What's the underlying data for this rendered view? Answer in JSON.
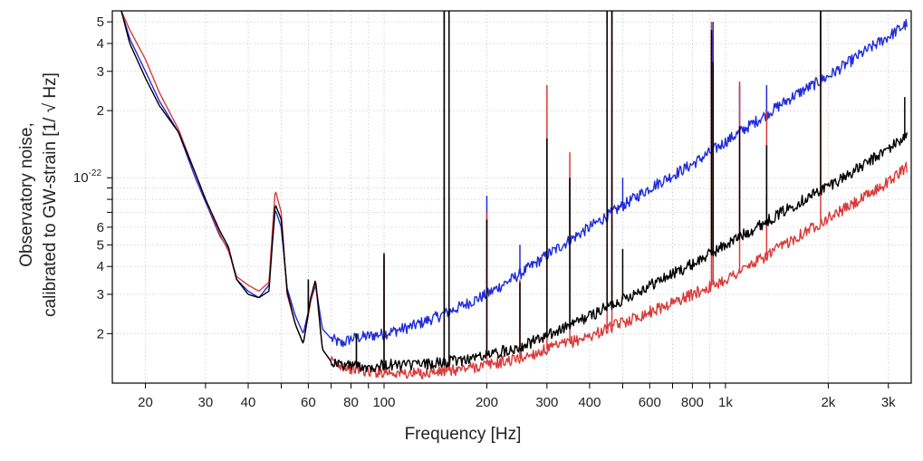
{
  "chart_data": {
    "type": "line",
    "title": "",
    "xlabel": "Frequency [Hz]",
    "ylabel_line1": "Observatory noise,",
    "ylabel_line2": "calibrated to GW-strain  [1/ √ Hz]",
    "xscale": "log",
    "yscale": "log",
    "xlim": [
      16,
      3500
    ],
    "ylim": [
      1.2e-23,
      5.6e-22
    ],
    "grid": true,
    "legend": "none",
    "x_tick_labels": [
      {
        "v": 20,
        "t": "20"
      },
      {
        "v": 30,
        "t": "30"
      },
      {
        "v": 40,
        "t": "40"
      },
      {
        "v": 60,
        "t": "60"
      },
      {
        "v": 80,
        "t": "80"
      },
      {
        "v": 100,
        "t": "100"
      },
      {
        "v": 200,
        "t": "200"
      },
      {
        "v": 300,
        "t": "300"
      },
      {
        "v": 400,
        "t": "400"
      },
      {
        "v": 600,
        "t": "600"
      },
      {
        "v": 800,
        "t": "800"
      },
      {
        "v": 1000,
        "t": "1k"
      },
      {
        "v": 2000,
        "t": "2k"
      },
      {
        "v": 3000,
        "t": "3k"
      }
    ],
    "y_tick_labels": [
      {
        "v": 2e-23,
        "t": "2"
      },
      {
        "v": 3e-23,
        "t": "3"
      },
      {
        "v": 4e-23,
        "t": "4"
      },
      {
        "v": 5e-23,
        "t": "5"
      },
      {
        "v": 6e-23,
        "t": "6"
      },
      {
        "v": 2e-22,
        "t": "2"
      },
      {
        "v": 3e-22,
        "t": "3"
      },
      {
        "v": 4e-22,
        "t": "4"
      },
      {
        "v": 5e-22,
        "t": "5"
      }
    ],
    "y_decade_label": {
      "v": 1e-22,
      "base": "10",
      "exp": "-22"
    },
    "series": [
      {
        "color": "#1f2bdc",
        "points": [
          [
            17,
            5.6e-22
          ],
          [
            18,
            4.2e-22
          ],
          [
            20,
            3e-22
          ],
          [
            22,
            2.2e-22
          ],
          [
            25,
            1.6e-22
          ],
          [
            28,
            1e-22
          ],
          [
            30,
            7.8e-23
          ],
          [
            33,
            5.5e-23
          ],
          [
            35,
            4.8e-23
          ],
          [
            37,
            3.5e-23
          ],
          [
            40,
            3.1e-23
          ],
          [
            43,
            2.9e-23
          ],
          [
            46,
            3.3e-23
          ],
          [
            48,
            7.2e-23
          ],
          [
            50,
            6e-23
          ],
          [
            52,
            3.2e-23
          ],
          [
            55,
            2.4e-23
          ],
          [
            58,
            2e-23
          ],
          [
            61,
            2.8e-23
          ],
          [
            63,
            3.3e-23
          ],
          [
            66,
            2.1e-23
          ],
          [
            70,
            1.9e-23
          ],
          [
            75,
            1.8e-23
          ],
          [
            80,
            1.9e-23
          ],
          [
            90,
            1.95e-23
          ],
          [
            100,
            2e-23
          ],
          [
            120,
            2.15e-23
          ],
          [
            150,
            2.45e-23
          ],
          [
            200,
            3e-23
          ],
          [
            250,
            3.7e-23
          ],
          [
            300,
            4.5e-23
          ],
          [
            400,
            6e-23
          ],
          [
            500,
            7.5e-23
          ],
          [
            600,
            9e-23
          ],
          [
            800,
            1.15e-22
          ],
          [
            1000,
            1.45e-22
          ],
          [
            1300,
            1.9e-22
          ],
          [
            1600,
            2.35e-22
          ],
          [
            2000,
            2.85e-22
          ],
          [
            2500,
            3.6e-22
          ],
          [
            3000,
            4.3e-22
          ],
          [
            3400,
            4.9e-22
          ]
        ],
        "lines": [
          [
            60,
            3.4e-23
          ],
          [
            83,
            2e-23
          ],
          [
            100,
            4.4e-23
          ],
          [
            150,
            5.6e-22
          ],
          [
            155,
            5.6e-22
          ],
          [
            200,
            8.3e-23
          ],
          [
            250,
            5e-23
          ],
          [
            300,
            1.5e-22
          ],
          [
            350,
            1e-22
          ],
          [
            450,
            5.6e-22
          ],
          [
            465,
            5.6e-22
          ],
          [
            500,
            1e-22
          ],
          [
            910,
            4.4e-22
          ],
          [
            920,
            5e-22
          ],
          [
            1100,
            2.6e-22
          ],
          [
            1200,
            1.8e-22
          ],
          [
            1320,
            2.6e-22
          ],
          [
            1900,
            5.6e-22
          ]
        ]
      },
      {
        "color": "#d93a3a",
        "points": [
          [
            17,
            5.6e-22
          ],
          [
            18,
            4.6e-22
          ],
          [
            20,
            3.4e-22
          ],
          [
            22,
            2.4e-22
          ],
          [
            25,
            1.65e-22
          ],
          [
            28,
            1.05e-22
          ],
          [
            30,
            8e-23
          ],
          [
            33,
            5.6e-23
          ],
          [
            35,
            4.7e-23
          ],
          [
            37,
            3.6e-23
          ],
          [
            40,
            3.3e-23
          ],
          [
            43,
            3.1e-23
          ],
          [
            46,
            3.4e-23
          ],
          [
            48,
            8.8e-23
          ],
          [
            50,
            7e-23
          ],
          [
            52,
            3e-23
          ],
          [
            55,
            2.2e-23
          ],
          [
            58,
            1.8e-23
          ],
          [
            61,
            2.8e-23
          ],
          [
            63,
            3.4e-23
          ],
          [
            66,
            1.7e-23
          ],
          [
            70,
            1.5e-23
          ],
          [
            75,
            1.45e-23
          ],
          [
            80,
            1.4e-23
          ],
          [
            90,
            1.35e-23
          ],
          [
            100,
            1.35e-23
          ],
          [
            120,
            1.32e-23
          ],
          [
            150,
            1.35e-23
          ],
          [
            200,
            1.45e-23
          ],
          [
            250,
            1.55e-23
          ],
          [
            300,
            1.7e-23
          ],
          [
            400,
            1.95e-23
          ],
          [
            500,
            2.25e-23
          ],
          [
            600,
            2.5e-23
          ],
          [
            800,
            3e-23
          ],
          [
            1000,
            3.5e-23
          ],
          [
            1300,
            4.4e-23
          ],
          [
            1600,
            5.4e-23
          ],
          [
            2000,
            6.6e-23
          ],
          [
            2500,
            8e-23
          ],
          [
            3000,
            9.6e-23
          ],
          [
            3400,
            1.12e-22
          ]
        ],
        "lines": [
          [
            60,
            3.5e-23
          ],
          [
            83,
            1.9e-23
          ],
          [
            100,
            4.5e-23
          ],
          [
            150,
            5.6e-22
          ],
          [
            155,
            5.6e-22
          ],
          [
            200,
            7e-23
          ],
          [
            250,
            3.5e-23
          ],
          [
            300,
            2.6e-22
          ],
          [
            350,
            1.3e-22
          ],
          [
            450,
            5.6e-22
          ],
          [
            465,
            5.6e-22
          ],
          [
            910,
            5e-22
          ],
          [
            920,
            3.2e-22
          ],
          [
            1100,
            2.7e-22
          ],
          [
            1320,
            2e-22
          ],
          [
            1900,
            5.6e-22
          ]
        ]
      },
      {
        "color": "#000000",
        "points": [
          [
            17,
            5.6e-22
          ],
          [
            18,
            4e-22
          ],
          [
            20,
            2.8e-22
          ],
          [
            22,
            2.1e-22
          ],
          [
            25,
            1.6e-22
          ],
          [
            28,
            1.05e-22
          ],
          [
            30,
            8e-23
          ],
          [
            33,
            5.8e-23
          ],
          [
            35,
            4.9e-23
          ],
          [
            37,
            3.5e-23
          ],
          [
            40,
            3e-23
          ],
          [
            43,
            2.9e-23
          ],
          [
            46,
            3.1e-23
          ],
          [
            48,
            7.6e-23
          ],
          [
            50,
            6.5e-23
          ],
          [
            52,
            3.1e-23
          ],
          [
            55,
            2.2e-23
          ],
          [
            58,
            1.8e-23
          ],
          [
            61,
            2.9e-23
          ],
          [
            63,
            3.5e-23
          ],
          [
            66,
            1.7e-23
          ],
          [
            70,
            1.5e-23
          ],
          [
            75,
            1.45e-23
          ],
          [
            80,
            1.45e-23
          ],
          [
            90,
            1.42e-23
          ],
          [
            100,
            1.45e-23
          ],
          [
            120,
            1.45e-23
          ],
          [
            150,
            1.48e-23
          ],
          [
            200,
            1.6e-23
          ],
          [
            250,
            1.75e-23
          ],
          [
            300,
            1.95e-23
          ],
          [
            400,
            2.4e-23
          ],
          [
            500,
            2.85e-23
          ],
          [
            600,
            3.3e-23
          ],
          [
            800,
            4.1e-23
          ],
          [
            1000,
            5e-23
          ],
          [
            1300,
            6.3e-23
          ],
          [
            1600,
            7.6e-23
          ],
          [
            2000,
            9.2e-23
          ],
          [
            2500,
            1.12e-22
          ],
          [
            3000,
            1.35e-22
          ],
          [
            3400,
            1.55e-22
          ]
        ],
        "lines": [
          [
            60,
            3.5e-23
          ],
          [
            83,
            2e-23
          ],
          [
            100,
            4.6e-23
          ],
          [
            150,
            5.6e-22
          ],
          [
            155,
            5.6e-22
          ],
          [
            200,
            6.5e-23
          ],
          [
            250,
            3.4e-23
          ],
          [
            300,
            1.5e-22
          ],
          [
            350,
            1e-22
          ],
          [
            450,
            5.6e-22
          ],
          [
            465,
            5.6e-22
          ],
          [
            500,
            4.8e-23
          ],
          [
            910,
            4.6e-22
          ],
          [
            920,
            3.3e-22
          ],
          [
            1100,
            1.7e-22
          ],
          [
            1320,
            1.4e-22
          ],
          [
            1900,
            5.6e-22
          ],
          [
            3350,
            2.3e-22
          ]
        ]
      }
    ]
  }
}
